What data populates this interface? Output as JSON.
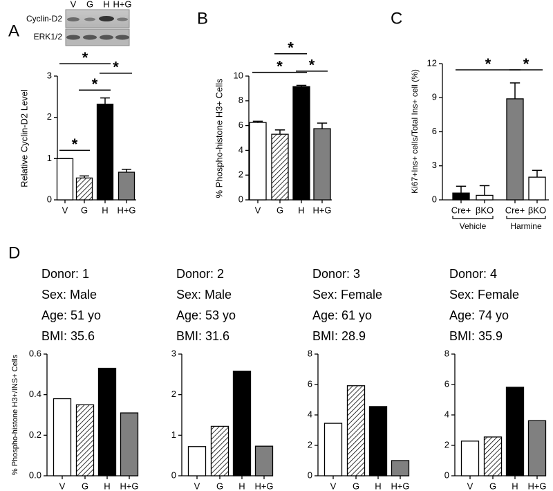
{
  "chart_data": [
    {
      "type": "bar",
      "panel": "A",
      "ylabel": "Relative Cyclin-D2 Level",
      "blot": {
        "lanes": [
          "V",
          "G",
          "H",
          "H+G"
        ],
        "rows": [
          "Cyclin-D2",
          "ERK1/2"
        ]
      },
      "categories": [
        "V",
        "G",
        "H",
        "H+G"
      ],
      "values": [
        1.0,
        0.53,
        2.32,
        0.67
      ],
      "errors": [
        0,
        0.05,
        0.15,
        0.07
      ],
      "colors": [
        "#ffffff",
        "#ffffff",
        "#000000",
        "#808080"
      ],
      "hatched": [
        1
      ],
      "ylim": [
        0,
        3
      ],
      "yticks": [
        0,
        1,
        2,
        3
      ],
      "significance": [
        {
          "pair": [
            0,
            1
          ],
          "label": "*"
        },
        {
          "pair": [
            1,
            2
          ],
          "label": "*"
        },
        {
          "pair": [
            2,
            3
          ],
          "label": "*"
        },
        {
          "pair": [
            0,
            2
          ],
          "label": "*"
        }
      ]
    },
    {
      "type": "bar",
      "panel": "B",
      "ylabel": "% Phospho-histone H3+ Cells",
      "categories": [
        "V",
        "G",
        "H",
        "H+G"
      ],
      "values": [
        6.25,
        5.3,
        9.15,
        5.75
      ],
      "errors": [
        0.1,
        0.35,
        0.1,
        0.45
      ],
      "colors": [
        "#ffffff",
        "#ffffff",
        "#000000",
        "#808080"
      ],
      "hatched": [
        1
      ],
      "ylim": [
        0,
        10
      ],
      "yticks": [
        0,
        2,
        4,
        6,
        8,
        10
      ],
      "significance": [
        {
          "pair": [
            1,
            2
          ],
          "label": "*"
        },
        {
          "pair": [
            0,
            2
          ],
          "label": "*"
        },
        {
          "pair": [
            2,
            3
          ],
          "label": "*"
        }
      ]
    },
    {
      "type": "bar",
      "panel": "C",
      "ylabel": "Ki67+Ins+ cells/Total Ins+ cell (%)",
      "categories": [
        "Cre+",
        "βKO",
        "Cre+",
        "βKO"
      ],
      "groups": [
        "Vehicle",
        "Harmine"
      ],
      "values": [
        0.6,
        0.4,
        8.9,
        2.0
      ],
      "errors": [
        0.6,
        0.85,
        1.4,
        0.6
      ],
      "colors": [
        "#000000",
        "#ffffff",
        "#808080",
        "#ffffff"
      ],
      "hatched": [],
      "ylim": [
        0,
        12
      ],
      "yticks": [
        0,
        3,
        6,
        9,
        12
      ],
      "significance": [
        {
          "pair": [
            0,
            2
          ],
          "label": "*"
        },
        {
          "pair": [
            2,
            3
          ],
          "label": "*"
        }
      ]
    },
    {
      "type": "bar",
      "panel": "D",
      "ylabel": "% Phospho-histone H3+/INS+ Cells",
      "info": [
        "Donor: 1",
        "Sex: Male",
        "Age: 51 yo",
        "BMI: 35.6"
      ],
      "categories": [
        "V",
        "G",
        "H",
        "H+G"
      ],
      "values": [
        0.38,
        0.35,
        0.53,
        0.31
      ],
      "colors": [
        "#ffffff",
        "#ffffff",
        "#000000",
        "#808080"
      ],
      "hatched": [
        1
      ],
      "ylim": [
        0,
        0.6
      ],
      "yticks": [
        {
          "value": 0,
          "label": "0.0"
        },
        0.2,
        0.4,
        0.6
      ]
    },
    {
      "type": "bar",
      "info": [
        "Donor: 2",
        "Sex: Male",
        "Age: 53 yo",
        "BMI: 31.6"
      ],
      "categories": [
        "V",
        "G",
        "H",
        "H+G"
      ],
      "values": [
        0.72,
        1.22,
        2.58,
        0.73
      ],
      "colors": [
        "#ffffff",
        "#ffffff",
        "#000000",
        "#808080"
      ],
      "hatched": [
        1
      ],
      "ylim": [
        0,
        3
      ],
      "yticks": [
        0,
        1,
        2,
        3
      ]
    },
    {
      "type": "bar",
      "info": [
        "Donor: 3",
        "Sex: Female",
        "Age: 61 yo",
        "BMI: 28.9"
      ],
      "categories": [
        "V",
        "G",
        "H",
        "H+G"
      ],
      "values": [
        3.45,
        5.92,
        4.55,
        1.0
      ],
      "colors": [
        "#ffffff",
        "#ffffff",
        "#000000",
        "#808080"
      ],
      "hatched": [
        1
      ],
      "ylim": [
        0,
        8
      ],
      "yticks": [
        0,
        2,
        4,
        6,
        8
      ]
    },
    {
      "type": "bar",
      "info": [
        "Donor: 4",
        "Sex: Female",
        "Age: 74 yo",
        "BMI: 35.9"
      ],
      "categories": [
        "V",
        "G",
        "H",
        "H+G"
      ],
      "values": [
        2.28,
        2.55,
        5.82,
        3.62
      ],
      "colors": [
        "#ffffff",
        "#ffffff",
        "#000000",
        "#808080"
      ],
      "hatched": [
        1
      ],
      "ylim": [
        0,
        8
      ],
      "yticks": [
        0,
        2,
        4,
        6,
        8
      ]
    }
  ]
}
